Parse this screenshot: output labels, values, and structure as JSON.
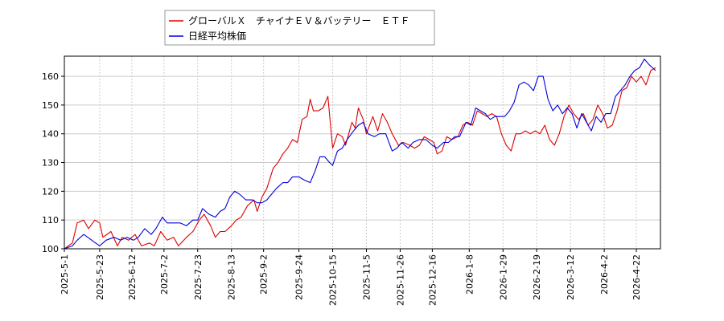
{
  "chart_data": {
    "type": "line",
    "x_type": "date",
    "xlabel": "",
    "ylabel": "",
    "ylim": [
      100,
      167
    ],
    "xlim": [
      "2025-05-01",
      "2026-05-07"
    ],
    "grid": true,
    "legend_position": "top-left",
    "y_ticks": [
      100,
      110,
      120,
      130,
      140,
      150,
      160
    ],
    "x_ticks": [
      "2025-5-1",
      "2025-5-23",
      "2025-6-12",
      "2025-7-2",
      "2025-7-23",
      "2025-8-13",
      "2025-9-2",
      "2025-9-24",
      "2025-10-15",
      "2025-11-5",
      "2025-11-26",
      "2025-12-16",
      "2026-1-8",
      "2026-1-29",
      "2026-2-19",
      "2026-3-12",
      "2026-4-2",
      "2026-4-22"
    ],
    "series": [
      {
        "name": "グローバルＸ　チャイナＥＶ＆バッテリー　ＥＴＦ",
        "color": "#dd0000",
        "points": [
          [
            "2025-05-01",
            100
          ],
          [
            "2025-05-06",
            102
          ],
          [
            "2025-05-09",
            109
          ],
          [
            "2025-05-13",
            110
          ],
          [
            "2025-05-16",
            107
          ],
          [
            "2025-05-20",
            110
          ],
          [
            "2025-05-23",
            109
          ],
          [
            "2025-05-25",
            104
          ],
          [
            "2025-05-30",
            106
          ],
          [
            "2025-06-03",
            101
          ],
          [
            "2025-06-06",
            104
          ],
          [
            "2025-06-10",
            103
          ],
          [
            "2025-06-14",
            105
          ],
          [
            "2025-06-18",
            101
          ],
          [
            "2025-06-23",
            102
          ],
          [
            "2025-06-26",
            101
          ],
          [
            "2025-06-30",
            106
          ],
          [
            "2025-07-04",
            103
          ],
          [
            "2025-07-08",
            104
          ],
          [
            "2025-07-11",
            101
          ],
          [
            "2025-07-16",
            104
          ],
          [
            "2025-07-20",
            106
          ],
          [
            "2025-07-24",
            110
          ],
          [
            "2025-07-27",
            112
          ],
          [
            "2025-07-31",
            108
          ],
          [
            "2025-08-03",
            104
          ],
          [
            "2025-08-06",
            106
          ],
          [
            "2025-08-09",
            106
          ],
          [
            "2025-08-13",
            108
          ],
          [
            "2025-08-16",
            110
          ],
          [
            "2025-08-19",
            111
          ],
          [
            "2025-08-23",
            115
          ],
          [
            "2025-08-27",
            117
          ],
          [
            "2025-08-29",
            113
          ],
          [
            "2025-09-01",
            118
          ],
          [
            "2025-09-04",
            121
          ],
          [
            "2025-09-08",
            128
          ],
          [
            "2025-09-11",
            130
          ],
          [
            "2025-09-14",
            133
          ],
          [
            "2025-09-17",
            135
          ],
          [
            "2025-09-20",
            138
          ],
          [
            "2025-09-23",
            137
          ],
          [
            "2025-09-26",
            145
          ],
          [
            "2025-09-29",
            146
          ],
          [
            "2025-10-01",
            152
          ],
          [
            "2025-10-03",
            148
          ],
          [
            "2025-10-06",
            148
          ],
          [
            "2025-10-09",
            149
          ],
          [
            "2025-10-12",
            153
          ],
          [
            "2025-10-15",
            135
          ],
          [
            "2025-10-18",
            140
          ],
          [
            "2025-10-21",
            139
          ],
          [
            "2025-10-23",
            136
          ],
          [
            "2025-10-25",
            140
          ],
          [
            "2025-10-27",
            144
          ],
          [
            "2025-10-29",
            142
          ],
          [
            "2025-10-31",
            149
          ],
          [
            "2025-11-03",
            145
          ],
          [
            "2025-11-05",
            140
          ],
          [
            "2025-11-09",
            146
          ],
          [
            "2025-11-12",
            141
          ],
          [
            "2025-11-15",
            147
          ],
          [
            "2025-11-18",
            144
          ],
          [
            "2025-11-21",
            140
          ],
          [
            "2025-11-25",
            136
          ],
          [
            "2025-11-28",
            137
          ],
          [
            "2025-12-02",
            136
          ],
          [
            "2025-12-05",
            135
          ],
          [
            "2025-12-08",
            136
          ],
          [
            "2025-12-11",
            139
          ],
          [
            "2025-12-14",
            138
          ],
          [
            "2025-12-17",
            137
          ],
          [
            "2025-12-19",
            133
          ],
          [
            "2025-12-22",
            134
          ],
          [
            "2025-12-25",
            139
          ],
          [
            "2025-12-28",
            138
          ],
          [
            "2026-01-01",
            139
          ],
          [
            "2026-01-04",
            143
          ],
          [
            "2026-01-07",
            144
          ],
          [
            "2026-01-10",
            143
          ],
          [
            "2026-01-13",
            148
          ],
          [
            "2026-01-16",
            147
          ],
          [
            "2026-01-19",
            146
          ],
          [
            "2026-01-22",
            147
          ],
          [
            "2026-01-25",
            146
          ],
          [
            "2026-01-28",
            140
          ],
          [
            "2026-01-31",
            136
          ],
          [
            "2026-02-03",
            134
          ],
          [
            "2026-02-06",
            140
          ],
          [
            "2026-02-09",
            140
          ],
          [
            "2026-02-12",
            141
          ],
          [
            "2026-02-15",
            140
          ],
          [
            "2026-02-18",
            141
          ],
          [
            "2026-02-21",
            140
          ],
          [
            "2026-02-24",
            143
          ],
          [
            "2026-02-27",
            138
          ],
          [
            "2026-03-02",
            136
          ],
          [
            "2026-03-05",
            140
          ],
          [
            "2026-03-08",
            146
          ],
          [
            "2026-03-11",
            150
          ],
          [
            "2026-03-14",
            147
          ],
          [
            "2026-03-17",
            145
          ],
          [
            "2026-03-20",
            147
          ],
          [
            "2026-03-23",
            143
          ],
          [
            "2026-03-26",
            145
          ],
          [
            "2026-03-29",
            150
          ],
          [
            "2026-04-01",
            147
          ],
          [
            "2026-04-04",
            142
          ],
          [
            "2026-04-07",
            143
          ],
          [
            "2026-04-10",
            148
          ],
          [
            "2026-04-13",
            155
          ],
          [
            "2026-04-16",
            156
          ],
          [
            "2026-04-19",
            160
          ],
          [
            "2026-04-22",
            158
          ],
          [
            "2026-04-25",
            160
          ],
          [
            "2026-04-28",
            157
          ],
          [
            "2026-05-01",
            162
          ],
          [
            "2026-05-04",
            163
          ]
        ]
      },
      {
        "name": "日経平均株価",
        "color": "#0000dd",
        "points": [
          [
            "2025-05-01",
            100
          ],
          [
            "2025-05-06",
            101
          ],
          [
            "2025-05-09",
            103
          ],
          [
            "2025-05-13",
            105
          ],
          [
            "2025-05-18",
            103
          ],
          [
            "2025-05-23",
            101
          ],
          [
            "2025-05-27",
            103
          ],
          [
            "2025-06-01",
            104
          ],
          [
            "2025-06-05",
            103
          ],
          [
            "2025-06-09",
            104
          ],
          [
            "2025-06-13",
            103
          ],
          [
            "2025-06-16",
            104
          ],
          [
            "2025-06-20",
            107
          ],
          [
            "2025-06-24",
            105
          ],
          [
            "2025-06-27",
            107
          ],
          [
            "2025-07-01",
            111
          ],
          [
            "2025-07-04",
            109
          ],
          [
            "2025-07-08",
            109
          ],
          [
            "2025-07-12",
            109
          ],
          [
            "2025-07-16",
            108
          ],
          [
            "2025-07-20",
            110
          ],
          [
            "2025-07-23",
            110
          ],
          [
            "2025-07-26",
            114
          ],
          [
            "2025-07-30",
            112
          ],
          [
            "2025-08-03",
            111
          ],
          [
            "2025-08-06",
            113
          ],
          [
            "2025-08-09",
            114
          ],
          [
            "2025-08-12",
            118
          ],
          [
            "2025-08-15",
            120
          ],
          [
            "2025-08-18",
            119
          ],
          [
            "2025-08-22",
            117
          ],
          [
            "2025-08-26",
            117
          ],
          [
            "2025-08-29",
            116
          ],
          [
            "2025-09-01",
            116
          ],
          [
            "2025-09-04",
            117
          ],
          [
            "2025-09-07",
            119
          ],
          [
            "2025-09-10",
            121
          ],
          [
            "2025-09-14",
            123
          ],
          [
            "2025-09-17",
            123
          ],
          [
            "2025-09-20",
            125
          ],
          [
            "2025-09-24",
            125
          ],
          [
            "2025-09-27",
            124
          ],
          [
            "2025-10-01",
            123
          ],
          [
            "2025-10-04",
            127
          ],
          [
            "2025-10-07",
            132
          ],
          [
            "2025-10-10",
            132
          ],
          [
            "2025-10-13",
            130
          ],
          [
            "2025-10-15",
            129
          ],
          [
            "2025-10-18",
            134
          ],
          [
            "2025-10-21",
            135
          ],
          [
            "2025-10-24",
            138
          ],
          [
            "2025-10-28",
            141
          ],
          [
            "2025-10-31",
            143
          ],
          [
            "2025-11-03",
            144
          ],
          [
            "2025-11-06",
            140
          ],
          [
            "2025-11-10",
            139
          ],
          [
            "2025-11-13",
            140
          ],
          [
            "2025-11-17",
            140
          ],
          [
            "2025-11-21",
            134
          ],
          [
            "2025-11-24",
            135
          ],
          [
            "2025-11-27",
            137
          ],
          [
            "2025-12-01",
            135
          ],
          [
            "2025-12-04",
            137
          ],
          [
            "2025-12-08",
            138
          ],
          [
            "2025-12-12",
            138
          ],
          [
            "2025-12-16",
            136
          ],
          [
            "2025-12-19",
            135
          ],
          [
            "2025-12-23",
            137
          ],
          [
            "2025-12-26",
            137
          ],
          [
            "2025-12-30",
            139
          ],
          [
            "2026-01-02",
            139
          ],
          [
            "2026-01-06",
            144
          ],
          [
            "2026-01-09",
            143
          ],
          [
            "2026-01-12",
            149
          ],
          [
            "2026-01-15",
            148
          ],
          [
            "2026-01-18",
            147
          ],
          [
            "2026-01-21",
            145
          ],
          [
            "2026-01-24",
            146
          ],
          [
            "2026-01-27",
            146
          ],
          [
            "2026-01-30",
            146
          ],
          [
            "2026-02-02",
            148
          ],
          [
            "2026-02-05",
            151
          ],
          [
            "2026-02-08",
            157
          ],
          [
            "2026-02-11",
            158
          ],
          [
            "2026-02-14",
            157
          ],
          [
            "2026-02-17",
            155
          ],
          [
            "2026-02-20",
            160
          ],
          [
            "2026-02-23",
            160
          ],
          [
            "2026-02-26",
            152
          ],
          [
            "2026-03-01",
            148
          ],
          [
            "2026-03-04",
            150
          ],
          [
            "2026-03-07",
            147
          ],
          [
            "2026-03-10",
            149
          ],
          [
            "2026-03-13",
            147
          ],
          [
            "2026-03-16",
            142
          ],
          [
            "2026-03-19",
            147
          ],
          [
            "2026-03-22",
            144
          ],
          [
            "2026-03-25",
            141
          ],
          [
            "2026-03-28",
            146
          ],
          [
            "2026-03-31",
            144
          ],
          [
            "2026-04-03",
            147
          ],
          [
            "2026-04-06",
            147
          ],
          [
            "2026-04-09",
            153
          ],
          [
            "2026-04-12",
            155
          ],
          [
            "2026-04-15",
            157
          ],
          [
            "2026-04-18",
            160
          ],
          [
            "2026-04-21",
            162
          ],
          [
            "2026-04-24",
            163
          ],
          [
            "2026-04-27",
            166
          ],
          [
            "2026-04-30",
            164
          ],
          [
            "2026-05-04",
            162
          ]
        ]
      }
    ]
  }
}
